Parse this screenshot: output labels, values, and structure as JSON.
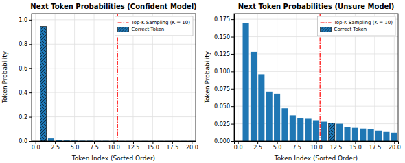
{
  "chart_data": [
    {
      "type": "bar",
      "title": "Next Token Probabilities (Confident Model)",
      "x_label": "Token Index (Sorted Order)",
      "y_label": "Token Probability",
      "x": [
        1,
        2,
        3,
        4,
        5,
        6,
        7,
        8,
        9,
        10,
        11,
        12,
        13,
        14,
        15,
        16,
        17,
        18,
        19,
        20
      ],
      "values": [
        0.945,
        0.022,
        0.01,
        0.005,
        0.004,
        0.003,
        0.003,
        0.002,
        0.002,
        0.002,
        0.001,
        0.001,
        0.001,
        0.001,
        0.001,
        0.001,
        0.001,
        0.001,
        0.001,
        0.001
      ],
      "color": "#1f77b4",
      "highlight": {
        "index": 0,
        "name": "Correct Token"
      },
      "vlines": [
        {
          "x": 10.5,
          "name": "Top-K Sampling (K = 10)",
          "color": "red",
          "line_style": "dashdot"
        }
      ],
      "xlim": [
        -0.5,
        20.5
      ],
      "xticks": [
        {
          "value": 0.0,
          "label": "0.0"
        },
        2.5,
        {
          "value": 5.0,
          "label": "5.0"
        },
        7.5,
        {
          "value": 10.0,
          "label": "10.0"
        },
        12.5,
        {
          "value": 15.0,
          "label": "15.0"
        },
        17.5,
        {
          "value": 20.0,
          "label": "20.0"
        }
      ],
      "ylim": [
        0.0,
        1.05
      ],
      "yticks": [
        {
          "value": 0.0,
          "label": "0.0"
        },
        0.2,
        0.4,
        0.6,
        0.8,
        {
          "value": 1.0,
          "label": "1.0"
        }
      ],
      "grid": true,
      "legend": "upper right"
    },
    {
      "type": "bar",
      "title": "Next Token Probabilities (Unsure Model)",
      "x_label": "Token Index (Sorted Order)",
      "y_label": "Token Probability",
      "x": [
        1,
        2,
        3,
        4,
        5,
        6,
        7,
        8,
        9,
        10,
        11,
        12,
        13,
        14,
        15,
        16,
        17,
        18,
        19,
        20
      ],
      "values": [
        0.17,
        0.128,
        0.096,
        0.071,
        0.068,
        0.047,
        0.037,
        0.033,
        0.032,
        0.03,
        0.028,
        0.026,
        0.025,
        0.02,
        0.019,
        0.018,
        0.017,
        0.015,
        0.013,
        0.012
      ],
      "color": "#1f77b4",
      "highlight": {
        "index": 11,
        "name": "Correct Token"
      },
      "vlines": [
        {
          "x": 10.5,
          "name": "Top-K Sampling (K = 10)",
          "color": "red",
          "line_style": "dashdot"
        }
      ],
      "xlim": [
        -0.5,
        20.5
      ],
      "xticks": [
        {
          "value": 0.0,
          "label": "0.0"
        },
        2.5,
        {
          "value": 5.0,
          "label": "5.0"
        },
        7.5,
        {
          "value": 10.0,
          "label": "10.0"
        },
        12.5,
        {
          "value": 15.0,
          "label": "15.0"
        },
        17.5,
        {
          "value": 20.0,
          "label": "20.0"
        }
      ],
      "ylim": [
        0.0,
        0.183
      ],
      "yticks": [
        {
          "value": 0.0,
          "label": "0.000"
        },
        0.025,
        {
          "value": 0.05,
          "label": "0.050"
        },
        0.075,
        {
          "value": 0.1,
          "label": "0.100"
        },
        0.125,
        {
          "value": 0.15,
          "label": "0.150"
        },
        0.175
      ],
      "grid": true,
      "legend": "upper right"
    }
  ]
}
